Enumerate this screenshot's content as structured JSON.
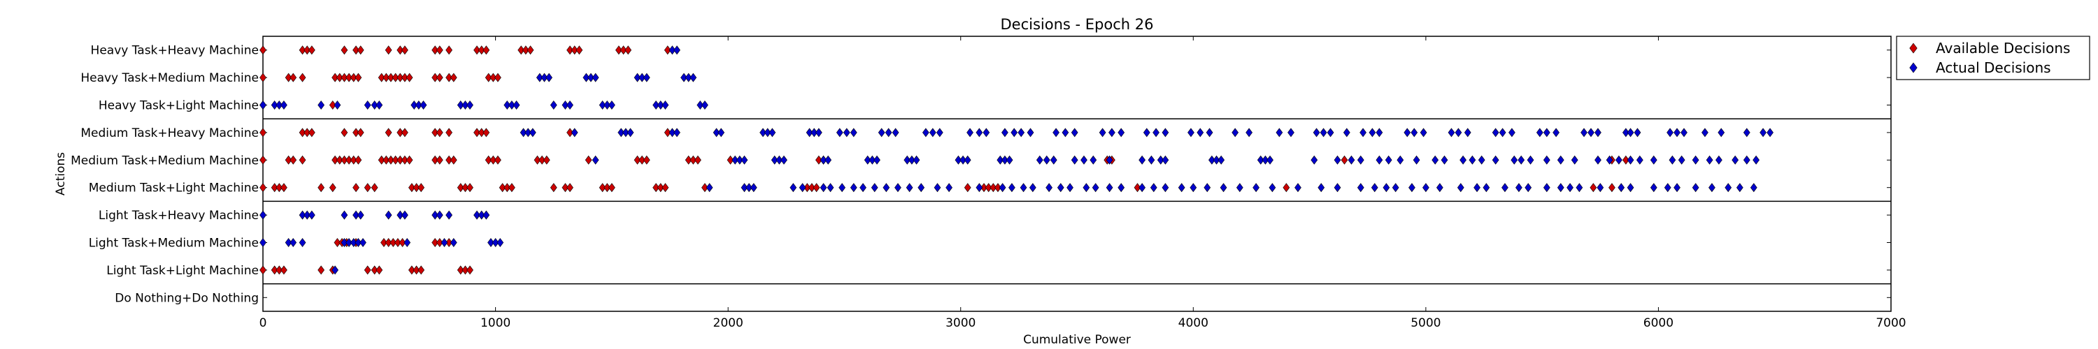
{
  "chart_data": {
    "type": "scatter",
    "title": "Decisions - Epoch 26",
    "xlabel": "Cumulative Power",
    "ylabel": "Actions",
    "xlim": [
      0,
      7000
    ],
    "xticks": [
      0,
      1000,
      2000,
      3000,
      4000,
      5000,
      6000,
      7000
    ],
    "categories": [
      "Heavy Task+Heavy Machine",
      "Heavy Task+Medium Machine",
      "Heavy Task+Light Machine",
      "Medium Task+Heavy Machine",
      "Medium Task+Medium Machine",
      "Medium Task+Light Machine",
      "Light Task+Heavy Machine",
      "Light Task+Medium Machine",
      "Light Task+Light Machine",
      "Do Nothing+Do Nothing"
    ],
    "group_separators_after": [
      2,
      5,
      8
    ],
    "legend_position": "outside-top-right",
    "series": [
      {
        "name": "Available Decisions",
        "color": "#cc0000",
        "marker": "diamond",
        "points": [
          {
            "row": 0,
            "x": [
              0,
              170,
              190,
              210,
              350,
              400,
              420,
              540,
              590,
              610,
              740,
              760,
              800,
              920,
              940,
              960,
              1110,
              1130,
              1150,
              1320,
              1340,
              1360,
              1530,
              1550,
              1570,
              1740
            ]
          },
          {
            "row": 1,
            "x": [
              0,
              110,
              130,
              170,
              310,
              330,
              350,
              370,
              390,
              410,
              510,
              530,
              550,
              570,
              590,
              610,
              630,
              740,
              760,
              800,
              820,
              970,
              990,
              1010
            ]
          },
          {
            "row": 2,
            "x": [
              0,
              300
            ]
          },
          {
            "row": 3,
            "x": [
              0,
              170,
              190,
              210,
              350,
              400,
              420,
              540,
              590,
              610,
              740,
              760,
              800,
              920,
              940,
              960,
              1320,
              1740
            ]
          },
          {
            "row": 4,
            "x": [
              0,
              110,
              130,
              170,
              310,
              330,
              350,
              370,
              390,
              410,
              510,
              530,
              550,
              570,
              590,
              610,
              630,
              740,
              760,
              800,
              820,
              970,
              990,
              1010,
              1180,
              1200,
              1220,
              1400,
              1610,
              1630,
              1650,
              1830,
              1850,
              1870,
              2010,
              2390,
              2410,
              3630,
              3650,
              4650,
              5800,
              5860
            ]
          },
          {
            "row": 5,
            "x": [
              0,
              50,
              70,
              90,
              250,
              300,
              400,
              450,
              480,
              640,
              660,
              680,
              850,
              870,
              890,
              1030,
              1050,
              1070,
              1250,
              1300,
              1320,
              1460,
              1480,
              1500,
              1690,
              1710,
              1730,
              1900,
              2340,
              2360,
              2380,
              3030,
              3100,
              3120,
              3140,
              3160,
              3760,
              4400,
              5720,
              5800
            ]
          },
          {
            "row": 6,
            "x": []
          },
          {
            "row": 7,
            "x": [
              320,
              340,
              360,
              400,
              520,
              540,
              560,
              580,
              600,
              740,
              760,
              800
            ]
          },
          {
            "row": 8,
            "x": [
              0,
              50,
              70,
              90,
              250,
              300,
              450,
              480,
              500,
              640,
              660,
              680,
              850,
              870,
              890
            ]
          },
          {
            "row": 9,
            "x": []
          }
        ]
      },
      {
        "name": "Actual Decisions",
        "color": "#0000cc",
        "marker": "diamond",
        "points": [
          {
            "row": 0,
            "x": [
              1760,
              1780
            ]
          },
          {
            "row": 1,
            "x": [
              1190,
              1210,
              1230,
              1390,
              1410,
              1430,
              1610,
              1630,
              1650,
              1810,
              1830,
              1850
            ]
          },
          {
            "row": 2,
            "x": [
              0,
              50,
              70,
              90,
              250,
              320,
              450,
              480,
              500,
              650,
              670,
              690,
              850,
              870,
              890,
              1050,
              1070,
              1090,
              1250,
              1300,
              1320,
              1460,
              1480,
              1500,
              1690,
              1710,
              1730,
              1880,
              1900
            ]
          },
          {
            "row": 3,
            "x": [
              1120,
              1140,
              1160,
              1340,
              1540,
              1560,
              1580,
              1760,
              1780,
              1950,
              1970,
              2150,
              2170,
              2190,
              2350,
              2370,
              2390,
              2480,
              2510,
              2540,
              2660,
              2690,
              2720,
              2850,
              2880,
              2910,
              3040,
              3080,
              3110,
              3190,
              3230,
              3260,
              3300,
              3410,
              3450,
              3490,
              3610,
              3650,
              3690,
              3800,
              3840,
              3880,
              3990,
              4030,
              4070,
              4180,
              4240,
              4370,
              4420,
              4530,
              4560,
              4590,
              4660,
              4730,
              4770,
              4800,
              4920,
              4950,
              4990,
              5110,
              5140,
              5180,
              5300,
              5330,
              5370,
              5490,
              5520,
              5560,
              5680,
              5710,
              5740,
              5860,
              5880,
              5910,
              6050,
              6080,
              6110,
              6200,
              6270,
              6380,
              6450,
              6480
            ]
          },
          {
            "row": 4,
            "x": [
              1430,
              2030,
              2050,
              2070,
              2200,
              2220,
              2240,
              2410,
              2430,
              2600,
              2620,
              2640,
              2770,
              2790,
              2810,
              2990,
              3010,
              3030,
              3170,
              3190,
              3210,
              3340,
              3370,
              3400,
              3490,
              3530,
              3570,
              3640,
              3780,
              3820,
              3860,
              3880,
              4080,
              4100,
              4120,
              4290,
              4310,
              4330,
              4520,
              4620,
              4680,
              4720,
              4800,
              4840,
              4890,
              4960,
              5040,
              5080,
              5160,
              5200,
              5240,
              5300,
              5380,
              5410,
              5450,
              5520,
              5580,
              5640,
              5740,
              5790,
              5830,
              5880,
              5920,
              5980,
              6060,
              6100,
              6160,
              6220,
              6260,
              6330,
              6380,
              6420
            ]
          },
          {
            "row": 5,
            "x": [
              1920,
              2070,
              2090,
              2110,
              2280,
              2320,
              2410,
              2440,
              2490,
              2540,
              2580,
              2630,
              2680,
              2730,
              2780,
              2830,
              2900,
              2950,
              3080,
              3180,
              3220,
              3270,
              3310,
              3380,
              3430,
              3470,
              3540,
              3580,
              3640,
              3690,
              3780,
              3830,
              3880,
              3950,
              4000,
              4060,
              4130,
              4200,
              4270,
              4340,
              4450,
              4550,
              4620,
              4720,
              4780,
              4830,
              4870,
              4940,
              5000,
              5060,
              5150,
              5220,
              5260,
              5340,
              5400,
              5440,
              5520,
              5580,
              5620,
              5660,
              5750,
              5840,
              5880,
              5980,
              6040,
              6080,
              6160,
              6230,
              6300,
              6350,
              6410
            ]
          },
          {
            "row": 6,
            "x": [
              0,
              170,
              190,
              210,
              350,
              400,
              420,
              540,
              590,
              610,
              740,
              760,
              800,
              920,
              940,
              960
            ]
          },
          {
            "row": 7,
            "x": [
              0,
              110,
              130,
              170,
              350,
              370,
              390,
              410,
              430,
              620,
              780,
              820,
              980,
              1000,
              1020
            ]
          },
          {
            "row": 8,
            "x": [
              310
            ]
          },
          {
            "row": 9,
            "x": []
          }
        ]
      }
    ]
  }
}
